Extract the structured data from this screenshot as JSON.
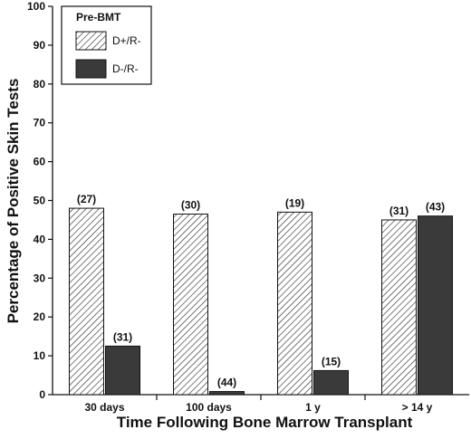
{
  "chart_data": {
    "type": "bar",
    "categories": [
      "30 days",
      "100 days",
      "1 y",
      "> 14 y"
    ],
    "series": [
      {
        "name": "D+/R-",
        "values": [
          48,
          46.5,
          47,
          45
        ],
        "labels": [
          "(27)",
          "(30)",
          "(19)",
          "(31)"
        ],
        "fill": "hatch"
      },
      {
        "name": "D-/R-",
        "values": [
          12.5,
          0.8,
          6.2,
          46
        ],
        "labels": [
          "(31)",
          "(44)",
          "(15)",
          "(43)"
        ],
        "fill": "#3a3a3a"
      }
    ],
    "title": "",
    "xlabel": "Time Following Bone Marrow Transplant",
    "ylabel": "Percentage of Positive Skin Tests",
    "ylim": [
      0,
      100
    ],
    "yticks": [
      0,
      10,
      20,
      30,
      40,
      50,
      60,
      70,
      80,
      90,
      100
    ],
    "grid": false,
    "legend": {
      "title": "Pre-BMT",
      "position": "top-left"
    }
  }
}
